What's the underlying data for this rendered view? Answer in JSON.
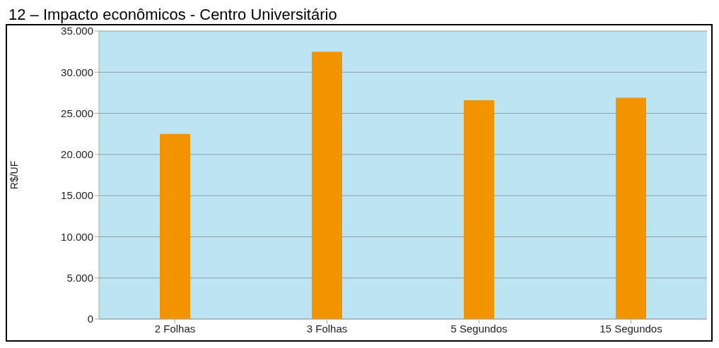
{
  "chart_data": {
    "type": "bar",
    "title": "12 – Impacto econômicos - Centro Universitário",
    "ylabel": "R$/UF",
    "categories": [
      "2 Folhas",
      "3 Folhas",
      "5 Segundos",
      "15 Segundos"
    ],
    "values": [
      22500,
      32500,
      26600,
      26900
    ],
    "color": "#f29400",
    "ylim": [
      0,
      35000
    ],
    "yticks": [
      {
        "value": 0,
        "label": "0"
      },
      {
        "value": 5000,
        "label": "5.000"
      },
      {
        "value": 10000,
        "label": "10.000"
      },
      {
        "value": 15000,
        "label": "15.000"
      },
      {
        "value": 20000,
        "label": "20.000"
      },
      {
        "value": 25000,
        "label": "25.000"
      },
      {
        "value": 30000,
        "label": "30.000"
      },
      {
        "value": 35000,
        "label": "35.000"
      }
    ],
    "grid": "y",
    "legend": false
  }
}
